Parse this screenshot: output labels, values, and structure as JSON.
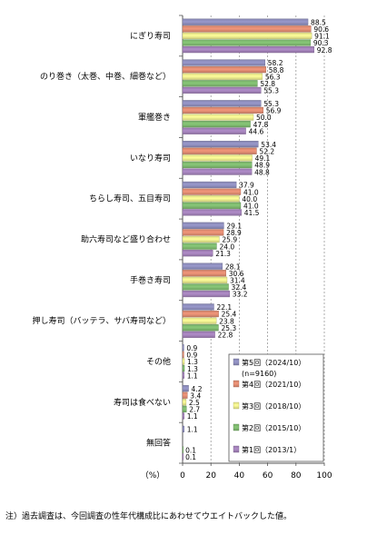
{
  "chart_data": {
    "type": "bar",
    "orientation": "horizontal",
    "categories": [
      "にぎり寿司",
      "のり巻き（太巻、中巻、細巻など）",
      "軍艦巻き",
      "いなり寿司",
      "ちらし寿司、五目寿司",
      "助六寿司など盛り合わせ",
      "手巻き寿司",
      "押し寿司（バッテラ、サバ寿司など）",
      "その他",
      "寿司は食べない",
      "無回答"
    ],
    "series": [
      {
        "name": "第5回（2024/10）",
        "color": "#9999CC",
        "values": [
          88.5,
          58.2,
          55.3,
          53.4,
          37.9,
          29.1,
          28.1,
          22.1,
          0.9,
          4.2,
          1.1
        ]
      },
      {
        "name": "第4回（2021/10）",
        "color": "#F2967A",
        "values": [
          90.6,
          58.8,
          56.9,
          52.2,
          41.0,
          28.9,
          30.6,
          25.4,
          0.9,
          3.4,
          null
        ]
      },
      {
        "name": "第3回（2018/10）",
        "color": "#FFFF99",
        "values": [
          91.1,
          56.3,
          50.0,
          49.1,
          40.0,
          25.9,
          31.4,
          23.8,
          1.3,
          2.5,
          null
        ]
      },
      {
        "name": "第2回（2015/10）",
        "color": "#88C878",
        "values": [
          90.3,
          52.8,
          47.8,
          48.9,
          41.0,
          24.0,
          32.4,
          25.3,
          1.3,
          2.7,
          0.1
        ]
      },
      {
        "name": "第1回（2013/1）",
        "color": "#B08CC8",
        "values": [
          92.8,
          55.3,
          44.6,
          48.8,
          41.5,
          21.3,
          33.2,
          22.8,
          1.1,
          1.1,
          0.1
        ]
      }
    ],
    "value_labels": [
      [
        "88.5",
        "90.6",
        "91.1",
        "90.3",
        "92.8"
      ],
      [
        "58.2",
        "58.8",
        "56.3",
        "52.8",
        "55.3"
      ],
      [
        "55.3",
        "56.9",
        "50.0",
        "47.8",
        "44.6"
      ],
      [
        "53.4",
        "52.2",
        "49.1",
        "48.9",
        "48.8"
      ],
      [
        "37.9",
        "41.0",
        "40.0",
        "41.0",
        "41.5"
      ],
      [
        "29.1",
        "28.9",
        "25.9",
        "24.0",
        "21.3"
      ],
      [
        "28.1",
        "30.6",
        "31.4",
        "32.4",
        "33.2"
      ],
      [
        "22.1",
        "25.4",
        "23.8",
        "25.3",
        "22.8"
      ],
      [
        "0.9",
        "0.9",
        "1.3",
        "1.3",
        "1.1"
      ],
      [
        "4.2",
        "3.4",
        "2.5",
        "2.7",
        "1.1"
      ],
      [
        "1.1",
        "",
        "",
        "0.1",
        "0.1"
      ]
    ],
    "legend_note": "(n=9160)",
    "xunit": "（%）",
    "xlim": [
      0,
      100
    ],
    "xticks": [
      0,
      20,
      40,
      60,
      80,
      100
    ],
    "legend_position": "bottom-right, inside plot",
    "grid": "vertical dashed at 20,40,60,80,100"
  },
  "footnote": "注）過去調査は、今回調査の性年代構成比にあわせてウエイトバックした値。"
}
